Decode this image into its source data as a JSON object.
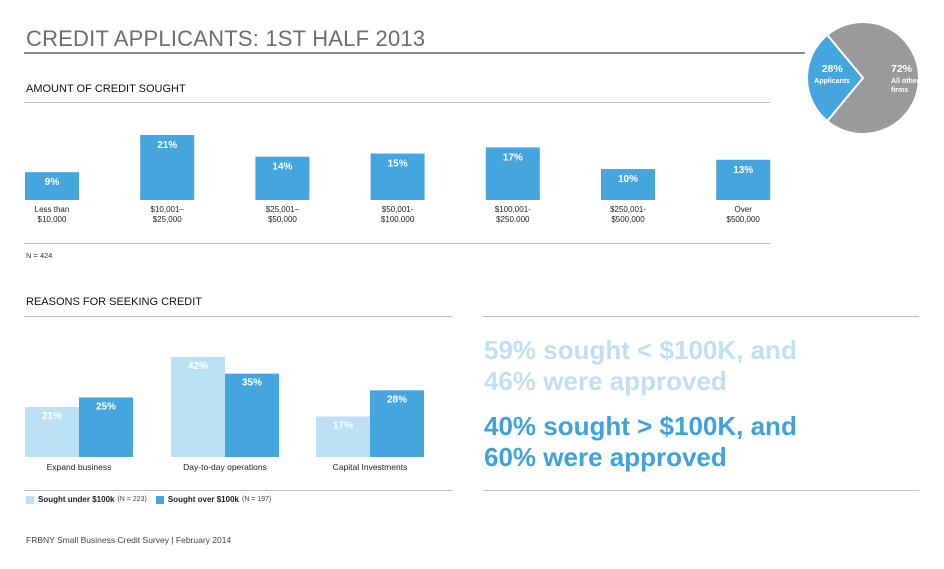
{
  "title": "CREDIT APPLICANTS: 1ST HALF 2013",
  "colors": {
    "dark_blue": "#45a6df",
    "light_blue": "#bde1f4",
    "gray": "#9a9a9a",
    "stat_light": "#bfe0f3",
    "stat_dark": "#3fa2dc"
  },
  "pie": {
    "chart_data": {
      "type": "pie",
      "slices": [
        {
          "label": "Applicants",
          "value": 28,
          "value_label": "28%",
          "color": "#45a6df"
        },
        {
          "label": "All other firms",
          "value": 72,
          "value_label": "72%",
          "color": "#9a9a9a"
        }
      ]
    }
  },
  "amount": {
    "section_title": "AMOUNT OF CREDIT SOUGHT",
    "note": "N = 424",
    "chart_data": {
      "type": "bar",
      "categories": [
        [
          "Less than",
          "$10,000"
        ],
        [
          "$10,001–",
          "$25,000"
        ],
        [
          "$25,001–",
          "$50,000"
        ],
        [
          "$50,001-",
          "$100,000"
        ],
        [
          "$100,001-",
          "$250,000"
        ],
        [
          "$250,001-",
          "$500,000"
        ],
        [
          "Over",
          "$500,000"
        ]
      ],
      "values": [
        9,
        21,
        14,
        15,
        17,
        10,
        13
      ],
      "value_labels": [
        "9%",
        "21%",
        "14%",
        "15%",
        "17%",
        "10%",
        "13%"
      ],
      "ylim": [
        0,
        25
      ]
    }
  },
  "reasons": {
    "section_title": "REASONS FOR SEEKING CREDIT",
    "chart_data": {
      "type": "bar",
      "categories": [
        "Expand business",
        "Day-to-day operations",
        "Capital Investments"
      ],
      "series": [
        {
          "name": "Sought under $100k",
          "values": [
            21,
            42,
            17
          ],
          "value_labels": [
            "21%",
            "42%",
            "17%"
          ],
          "color": "#bde1f4"
        },
        {
          "name": "Sought over $100k",
          "values": [
            25,
            35,
            28
          ],
          "value_labels": [
            "25%",
            "35%",
            "28%"
          ],
          "color": "#45a6df"
        }
      ],
      "ylim": [
        0,
        45
      ]
    },
    "legend": {
      "under_label": "Sought under $100k",
      "under_n": "(N = 223)",
      "over_label": "Sought over $100k",
      "over_n": "(N = 197)"
    }
  },
  "stats": {
    "under_line1": "59% sought < $100K, and",
    "under_line2": "46% were approved",
    "over_line1": "40% sought > $100K, and",
    "over_line2": "60% were approved"
  },
  "footer": "FRBNY Small Business Credit Survey  |  February 2014"
}
